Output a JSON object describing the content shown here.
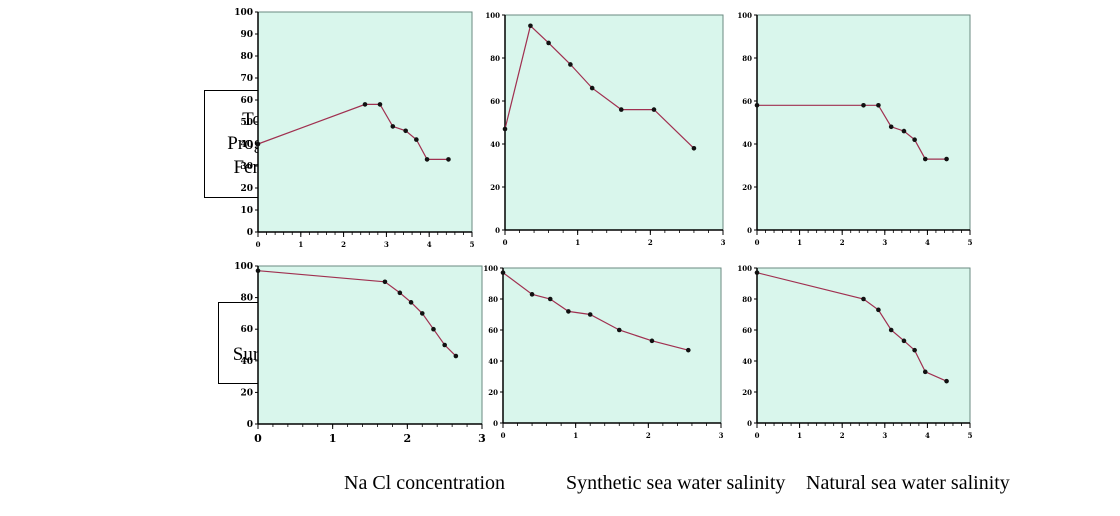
{
  "row_labels": [
    {
      "lines": [
        "Total",
        "Progeny/",
        "Female"
      ]
    },
    {
      "lines": [
        "%",
        "Survival"
      ]
    }
  ],
  "column_labels": [
    "Na Cl concentration",
    "Synthetic sea water salinity",
    "Natural sea water salinity"
  ],
  "colors": {
    "plot_bg": "#d9f6ec",
    "line": "#a03050",
    "point": "#111111",
    "frame": "#000000"
  },
  "chart_data": [
    {
      "type": "line",
      "row": 0,
      "col": 0,
      "ylim": [
        0,
        100
      ],
      "yticks": [
        0,
        10,
        20,
        30,
        40,
        50,
        60,
        70,
        80,
        90,
        100
      ],
      "xlim": [
        0,
        5
      ],
      "xticks": [
        0,
        1,
        2,
        3,
        4,
        5
      ],
      "x": [
        0,
        2.5,
        2.85,
        3.15,
        3.45,
        3.7,
        3.95,
        4.45
      ],
      "y": [
        40,
        58,
        58,
        48,
        46,
        42,
        33,
        33
      ]
    },
    {
      "type": "line",
      "row": 0,
      "col": 1,
      "ylim": [
        0,
        100
      ],
      "yticks": [
        0,
        20,
        40,
        60,
        80,
        100
      ],
      "xlim": [
        0,
        3
      ],
      "xticks": [
        0,
        1,
        2,
        3
      ],
      "x": [
        0,
        0.35,
        0.6,
        0.9,
        1.2,
        1.6,
        2.05,
        2.6
      ],
      "y": [
        47,
        95,
        87,
        77,
        66,
        56,
        56,
        38
      ]
    },
    {
      "type": "line",
      "row": 0,
      "col": 2,
      "ylim": [
        0,
        100
      ],
      "yticks": [
        0,
        20,
        40,
        60,
        80,
        100
      ],
      "xlim": [
        0,
        5
      ],
      "xticks": [
        0,
        1,
        2,
        3,
        4,
        5
      ],
      "x": [
        0,
        2.5,
        2.85,
        3.15,
        3.45,
        3.7,
        3.95,
        4.45
      ],
      "y": [
        58,
        58,
        58,
        48,
        46,
        42,
        33,
        33
      ]
    },
    {
      "type": "line",
      "row": 1,
      "col": 0,
      "ylim": [
        0,
        100
      ],
      "yticks": [
        0,
        20,
        40,
        60,
        80,
        100
      ],
      "xlim": [
        0,
        3
      ],
      "xticks": [
        0,
        1,
        2,
        3
      ],
      "x": [
        0,
        1.7,
        1.9,
        2.05,
        2.2,
        2.35,
        2.5,
        2.65
      ],
      "y": [
        97,
        90,
        83,
        77,
        70,
        60,
        50,
        43
      ]
    },
    {
      "type": "line",
      "row": 1,
      "col": 1,
      "ylim": [
        0,
        100
      ],
      "yticks": [
        0,
        20,
        40,
        60,
        80,
        100
      ],
      "xlim": [
        0,
        3
      ],
      "xticks": [
        0,
        1,
        2,
        3
      ],
      "x": [
        0,
        0.4,
        0.65,
        0.9,
        1.2,
        1.6,
        2.05,
        2.55
      ],
      "y": [
        97,
        83,
        80,
        72,
        70,
        60,
        53,
        47
      ]
    },
    {
      "type": "line",
      "row": 1,
      "col": 2,
      "ylim": [
        0,
        100
      ],
      "yticks": [
        0,
        20,
        40,
        60,
        80,
        100
      ],
      "xlim": [
        0,
        5
      ],
      "xticks": [
        0,
        1,
        2,
        3,
        4,
        5
      ],
      "x": [
        0,
        2.5,
        2.85,
        3.15,
        3.45,
        3.7,
        3.95,
        4.45
      ],
      "y": [
        97,
        80,
        73,
        60,
        53,
        47,
        33,
        27
      ]
    }
  ]
}
